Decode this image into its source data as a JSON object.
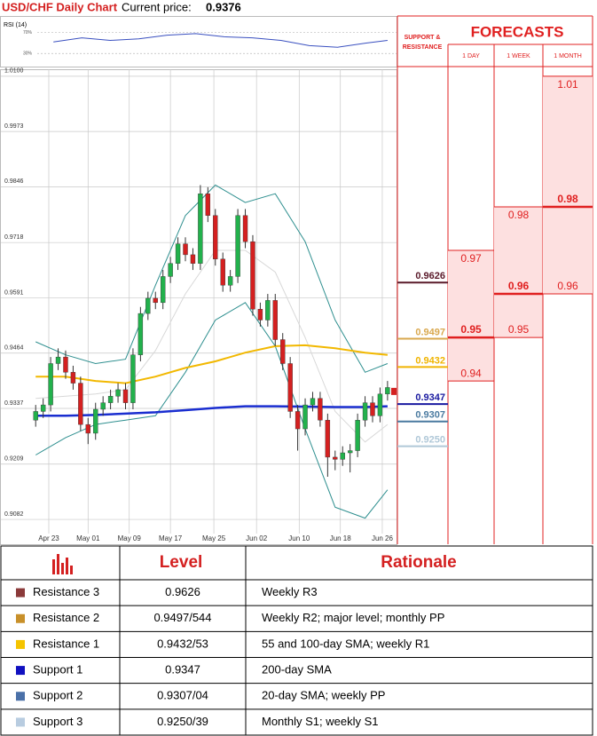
{
  "header": {
    "title": "USD/CHF Daily Chart",
    "price_label": "Current price:",
    "current_price": 0.9376
  },
  "chart_data": {
    "type": "candlestick",
    "open": [
      0.931,
      0.933,
      0.9345,
      0.944,
      0.9455,
      0.942,
      0.9395,
      0.93,
      0.928,
      0.9335,
      0.935,
      0.9365,
      0.938,
      0.935,
      0.946,
      0.9555,
      0.959,
      0.958,
      0.964,
      0.967,
      0.9715,
      0.969,
      0.967,
      0.983,
      0.978,
      0.968,
      0.962,
      0.964,
      0.978,
      0.972,
      0.9565,
      0.954,
      0.9585,
      0.9495,
      0.944,
      0.933,
      0.929,
      0.9345,
      0.936,
      0.931,
      0.9225,
      0.922,
      0.9235,
      0.924,
      0.931,
      0.935,
      0.932,
      0.937
    ],
    "high": [
      0.9345,
      0.936,
      0.9455,
      0.9475,
      0.947,
      0.9435,
      0.941,
      0.9315,
      0.935,
      0.9365,
      0.938,
      0.9395,
      0.9395,
      0.9475,
      0.957,
      0.9605,
      0.9605,
      0.9655,
      0.9685,
      0.973,
      0.973,
      0.9705,
      0.985,
      0.9845,
      0.9795,
      0.9695,
      0.9655,
      0.9795,
      0.9795,
      0.9735,
      0.958,
      0.96,
      0.96,
      0.951,
      0.9455,
      0.9345,
      0.936,
      0.9375,
      0.9375,
      0.9325,
      0.924,
      0.925,
      0.9255,
      0.9325,
      0.9365,
      0.9365,
      0.9385,
      0.94
    ],
    "low": [
      0.9295,
      0.9315,
      0.933,
      0.9425,
      0.9405,
      0.938,
      0.9285,
      0.9255,
      0.9265,
      0.932,
      0.9335,
      0.935,
      0.9335,
      0.9335,
      0.9445,
      0.954,
      0.9565,
      0.9565,
      0.9625,
      0.9655,
      0.9675,
      0.9655,
      0.9655,
      0.9765,
      0.9665,
      0.9605,
      0.9605,
      0.9625,
      0.9705,
      0.955,
      0.9525,
      0.9525,
      0.948,
      0.9425,
      0.9315,
      0.924,
      0.9275,
      0.933,
      0.9295,
      0.918,
      0.9195,
      0.9205,
      0.919,
      0.9225,
      0.9295,
      0.9305,
      0.9305,
      0.9355
    ],
    "close": [
      0.933,
      0.9345,
      0.944,
      0.9455,
      0.942,
      0.9395,
      0.93,
      0.928,
      0.9335,
      0.935,
      0.9365,
      0.938,
      0.935,
      0.946,
      0.9555,
      0.959,
      0.958,
      0.964,
      0.967,
      0.9715,
      0.969,
      0.967,
      0.983,
      0.978,
      0.968,
      0.962,
      0.964,
      0.978,
      0.972,
      0.9565,
      0.954,
      0.9585,
      0.9495,
      0.944,
      0.933,
      0.929,
      0.9345,
      0.936,
      0.931,
      0.9225,
      0.922,
      0.9235,
      0.924,
      0.931,
      0.935,
      0.932,
      0.937,
      0.9385
    ],
    "up_color": "#22b14c",
    "down_color": "#d42020",
    "xlim": [
      0.5,
      49.2
    ],
    "xticks": [
      {
        "value": 2.75,
        "label": "Apr 23"
      },
      {
        "value": 8,
        "label": "May 01"
      },
      {
        "value": 13.5,
        "label": "May 09"
      },
      {
        "value": 19,
        "label": "May 17"
      },
      {
        "value": 24.8,
        "label": "May 25"
      },
      {
        "value": 30.5,
        "label": "Jun 02"
      },
      {
        "value": 36.2,
        "label": "Jun 10"
      },
      {
        "value": 41.7,
        "label": "Jun 18"
      },
      {
        "value": 47.3,
        "label": "Jun 26"
      }
    ],
    "ylim": [
      0.9025,
      1.0116
    ],
    "yticks": [
      0.9082,
      0.9209,
      0.9337,
      0.9464,
      0.9591,
      0.9718,
      0.9846,
      0.9973,
      {
        "value": 1.01,
        "label": "1.0100"
      }
    ],
    "grid": true,
    "overlays": [
      {
        "x": [
          1,
          5,
          9,
          13,
          17,
          21,
          25,
          29,
          33,
          37,
          41,
          45,
          48
        ],
        "values": [
          0.936,
          0.9365,
          0.937,
          0.938,
          0.947,
          0.96,
          0.97,
          0.97,
          0.965,
          0.95,
          0.933,
          0.926,
          0.93
        ],
        "color": "#d8d8d8",
        "width": 1
      },
      {
        "x": [
          1,
          5,
          9,
          13,
          17,
          21,
          25,
          29,
          33,
          37,
          41,
          45,
          48
        ],
        "values": [
          0.949,
          0.946,
          0.944,
          0.945,
          0.962,
          0.978,
          0.985,
          0.981,
          0.983,
          0.972,
          0.954,
          0.942,
          0.944
        ],
        "color": "#2e8f8f",
        "width": 1
      },
      {
        "x": [
          1,
          5,
          9,
          13,
          17,
          21,
          25,
          29,
          33,
          37,
          41,
          45,
          48
        ],
        "values": [
          0.923,
          0.927,
          0.93,
          0.931,
          0.932,
          0.942,
          0.954,
          0.958,
          0.948,
          0.929,
          0.911,
          0.9085,
          0.915
        ],
        "color": "#2e8f8f",
        "width": 1
      },
      {
        "x": [
          1,
          5,
          9,
          13,
          17,
          21,
          25,
          29,
          33,
          37,
          41,
          45,
          48
        ],
        "values": [
          0.941,
          0.941,
          0.94,
          0.9395,
          0.941,
          0.943,
          0.9445,
          0.9465,
          0.948,
          0.9482,
          0.9475,
          0.9465,
          0.946
        ],
        "color": "#f2b800",
        "width": 2
      },
      {
        "x": [
          1,
          5,
          9,
          13,
          17,
          21,
          25,
          29,
          33,
          37,
          41,
          45,
          48
        ],
        "values": [
          0.932,
          0.932,
          0.9322,
          0.9325,
          0.9328,
          0.9333,
          0.9338,
          0.9342,
          0.9342,
          0.9341,
          0.934,
          0.934,
          0.9342
        ],
        "color": "#1a2ed0",
        "width": 2.5
      }
    ]
  },
  "rsi": {
    "type": "line",
    "label": "RSI (14)",
    "x": [
      1,
      5,
      9,
      13,
      17,
      21,
      25,
      29,
      33,
      37,
      41,
      45,
      48
    ],
    "values": [
      52,
      60,
      55,
      58,
      65,
      68,
      62,
      60,
      55,
      45,
      42,
      50,
      55
    ],
    "ylim": [
      5,
      100
    ],
    "yticks": [
      {
        "value": 70,
        "label": "70%"
      },
      {
        "value": 30,
        "label": "30%"
      }
    ],
    "color": "#3a50c0"
  },
  "levels": {
    "title_lines": [
      "SUPPORT &",
      "RESISTANCE"
    ],
    "values": [
      0.9626,
      0.9497,
      0.9432,
      0.9347,
      0.9307,
      {
        "value": 0.925,
        "label": "0.9250"
      }
    ],
    "colors": [
      "#5a1a2a",
      "#d9a84e",
      "#f0b400",
      "#1a1aa0",
      "#4a7aa0",
      "#b0c8d8"
    ]
  },
  "forecasts": {
    "title": "FORECASTS",
    "columns": [
      {
        "label": "1 DAY",
        "high": 0.97,
        "mid": 0.95,
        "low": 0.94
      },
      {
        "label": "1 WEEK",
        "high": 0.98,
        "mid": 0.96,
        "low": 0.95
      },
      {
        "label": "1 MONTH",
        "high": 1.01,
        "mid": 0.98,
        "low": 0.96
      }
    ]
  },
  "table": {
    "headers": [
      "Level",
      "Rationale"
    ],
    "rows": [
      [
        "Resistance 3",
        "0.9626",
        "Weekly R3"
      ],
      [
        "Resistance 2",
        "0.9497/544",
        "Weekly R2; major level; monthly PP"
      ],
      [
        "Resistance 1",
        "0.9432/53",
        "55 and 100-day SMA; weekly R1"
      ],
      [
        "Support 1",
        "0.9347",
        "200-day SMA"
      ],
      [
        "Support 2",
        "0.9307/04",
        "20-day SMA; weekly PP"
      ],
      [
        "Support 3",
        "0.9250/39",
        "Monthly S1; weekly S1"
      ]
    ],
    "colors": [
      "#8b3a3a",
      "#c8902a",
      "#f5c400",
      "#1010c0",
      "#4a70a8",
      "#b8cce0"
    ]
  }
}
